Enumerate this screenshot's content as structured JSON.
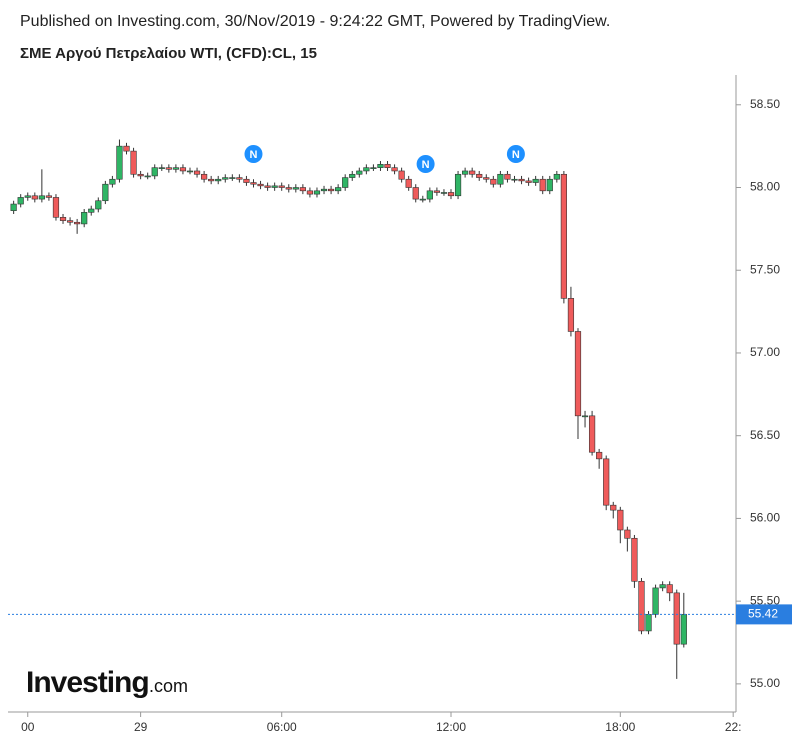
{
  "header": "Published on Investing.com, 30/Nov/2019 - 9:24:22 GMT, Powered by TradingView.",
  "chart_data": {
    "type": "candlestick",
    "title": "ΣΜΕ Αργού Πετρελαίου WTI, (CFD):CL, 15",
    "watermark": {
      "brand": "Investing",
      "suffix": ".com"
    },
    "up_color": "#2fb565",
    "down_color": "#ef5b5b",
    "x": [
      -3.5,
      -3.25,
      -3,
      -2.75,
      -2.5,
      -2.25,
      -2,
      -1.75,
      -1.5,
      -1.25,
      -1,
      -0.75,
      -0.5,
      -0.25,
      0,
      0.25,
      0.5,
      0.75,
      1,
      1.25,
      1.5,
      1.75,
      2,
      2.25,
      2.5,
      2.75,
      3,
      3.25,
      3.5,
      3.75,
      4,
      4.25,
      4.5,
      4.75,
      5,
      5.25,
      5.5,
      5.75,
      6,
      6.25,
      6.5,
      6.75,
      7,
      7.25,
      7.5,
      7.75,
      8,
      8.25,
      8.5,
      8.75,
      9,
      9.25,
      9.5,
      9.75,
      10,
      10.25,
      10.5,
      10.75,
      11,
      11.25,
      11.5,
      11.75,
      12,
      12.25,
      12.5,
      12.75,
      13,
      13.25,
      13.5,
      13.75,
      14,
      14.25,
      14.5,
      14.75,
      15,
      15.25,
      15.5,
      15.75,
      16,
      16.25,
      16.5,
      16.75,
      17,
      17.25,
      17.5,
      17.75,
      18,
      18.25,
      18.5,
      18.75,
      19,
      19.25,
      19.5,
      19.75,
      20,
      20.25
    ],
    "open": [
      57.86,
      57.9,
      57.94,
      57.95,
      57.93,
      57.95,
      57.94,
      57.82,
      57.8,
      57.79,
      57.78,
      57.85,
      57.87,
      57.92,
      58.02,
      58.05,
      58.25,
      58.22,
      58.08,
      58.07,
      58.07,
      58.12,
      58.12,
      58.11,
      58.12,
      58.1,
      58.1,
      58.08,
      58.05,
      58.04,
      58.05,
      58.06,
      58.06,
      58.05,
      58.03,
      58.02,
      58.01,
      58.0,
      58.01,
      58.0,
      57.99,
      58.0,
      57.98,
      57.96,
      57.98,
      57.99,
      57.98,
      58.0,
      58.06,
      58.08,
      58.1,
      58.12,
      58.12,
      58.14,
      58.12,
      58.1,
      58.05,
      58.0,
      57.93,
      57.93,
      57.98,
      57.97,
      57.97,
      57.95,
      58.08,
      58.1,
      58.08,
      58.06,
      58.05,
      58.02,
      58.08,
      58.05,
      58.05,
      58.04,
      58.03,
      58.05,
      57.98,
      58.05,
      58.08,
      57.33,
      57.13,
      56.62,
      56.62,
      56.4,
      56.36,
      56.08,
      56.05,
      55.93,
      55.88,
      55.62,
      55.32,
      55.42,
      55.58,
      55.6,
      55.55,
      55.24
    ],
    "high": [
      57.92,
      57.96,
      57.97,
      57.97,
      58.11,
      57.97,
      57.96,
      57.84,
      57.82,
      57.81,
      57.87,
      57.89,
      57.94,
      58.04,
      58.07,
      58.29,
      58.27,
      58.24,
      58.1,
      58.09,
      58.14,
      58.14,
      58.14,
      58.14,
      58.14,
      58.12,
      58.12,
      58.1,
      58.07,
      58.07,
      58.08,
      58.08,
      58.08,
      58.07,
      58.05,
      58.04,
      58.03,
      58.03,
      58.03,
      58.02,
      58.02,
      58.02,
      58.0,
      58.0,
      58.01,
      58.01,
      58.02,
      58.08,
      58.1,
      58.12,
      58.14,
      58.14,
      58.16,
      58.16,
      58.14,
      58.12,
      58.07,
      58.02,
      57.95,
      58.0,
      58.0,
      57.99,
      57.99,
      58.1,
      58.12,
      58.12,
      58.1,
      58.08,
      58.07,
      58.1,
      58.1,
      58.07,
      58.07,
      58.06,
      58.07,
      58.07,
      58.07,
      58.1,
      58.1,
      57.4,
      57.15,
      56.65,
      56.65,
      56.42,
      56.38,
      56.1,
      56.07,
      55.95,
      55.9,
      55.64,
      55.44,
      55.6,
      55.62,
      55.62,
      55.57,
      55.55
    ],
    "low": [
      57.84,
      57.88,
      57.92,
      57.91,
      57.91,
      57.92,
      57.8,
      57.78,
      57.77,
      57.72,
      57.76,
      57.83,
      57.85,
      57.9,
      58.0,
      58.03,
      58.2,
      58.06,
      58.05,
      58.05,
      58.05,
      58.1,
      58.09,
      58.09,
      58.08,
      58.08,
      58.06,
      58.03,
      58.02,
      58.02,
      58.03,
      58.04,
      58.03,
      58.01,
      58.0,
      57.99,
      57.98,
      57.98,
      57.98,
      57.97,
      57.97,
      57.96,
      57.94,
      57.94,
      57.96,
      57.96,
      57.96,
      57.98,
      58.04,
      58.06,
      58.08,
      58.1,
      58.1,
      58.1,
      58.08,
      58.03,
      57.98,
      57.91,
      57.91,
      57.91,
      57.95,
      57.95,
      57.93,
      57.93,
      58.06,
      58.06,
      58.04,
      58.03,
      58.0,
      58.0,
      58.03,
      58.03,
      58.02,
      58.01,
      58.01,
      57.96,
      57.96,
      58.03,
      57.3,
      57.1,
      56.48,
      56.55,
      56.38,
      56.3,
      56.05,
      56.0,
      55.85,
      55.8,
      55.58,
      55.3,
      55.3,
      55.4,
      55.56,
      55.5,
      55.03,
      55.22
    ],
    "close": [
      57.9,
      57.94,
      57.95,
      57.93,
      57.95,
      57.94,
      57.82,
      57.8,
      57.79,
      57.78,
      57.85,
      57.87,
      57.92,
      58.02,
      58.05,
      58.25,
      58.22,
      58.08,
      58.07,
      58.07,
      58.12,
      58.12,
      58.11,
      58.12,
      58.1,
      58.1,
      58.08,
      58.05,
      58.04,
      58.05,
      58.06,
      58.06,
      58.05,
      58.03,
      58.02,
      58.01,
      58.0,
      58.01,
      58.0,
      57.99,
      58.0,
      57.98,
      57.96,
      57.98,
      57.99,
      57.98,
      58.0,
      58.06,
      58.08,
      58.1,
      58.12,
      58.12,
      58.14,
      58.12,
      58.1,
      58.05,
      58.0,
      57.93,
      57.93,
      57.98,
      57.97,
      57.97,
      57.95,
      58.08,
      58.1,
      58.08,
      58.06,
      58.05,
      58.02,
      58.08,
      58.05,
      58.05,
      58.04,
      58.03,
      58.05,
      57.98,
      58.05,
      58.08,
      57.33,
      57.13,
      56.62,
      56.62,
      56.4,
      56.36,
      56.08,
      56.05,
      55.93,
      55.88,
      55.62,
      55.32,
      55.42,
      55.58,
      55.6,
      55.55,
      55.24,
      55.42
    ],
    "last_price": {
      "value": 55.42,
      "label": "55.42",
      "color": "#2a7ee0"
    },
    "news_markers": [
      {
        "x": 5,
        "label": "N"
      },
      {
        "x": 11.1,
        "label": "N"
      },
      {
        "x": 14.3,
        "label": "N"
      }
    ],
    "xlim": [
      -3.7,
      22.1
    ],
    "xticks": [
      {
        "value": -3,
        "label": "00"
      },
      {
        "value": 1,
        "label": "29"
      },
      {
        "value": 6,
        "label": "06:00"
      },
      {
        "value": 12,
        "label": "12:00"
      },
      {
        "value": 18,
        "label": "18:00"
      },
      {
        "value": 22,
        "label": "22:"
      }
    ],
    "ylim": [
      54.83,
      58.68
    ],
    "yticks": [
      {
        "value": 55,
        "label": "55.00"
      },
      {
        "value": 55.5,
        "label": "55.50"
      },
      {
        "value": 56,
        "label": "56.00"
      },
      {
        "value": 56.5,
        "label": "56.50"
      },
      {
        "value": 57,
        "label": "57.00"
      },
      {
        "value": 57.5,
        "label": "57.50"
      },
      {
        "value": 58,
        "label": "58.00"
      },
      {
        "value": 58.5,
        "label": "58.50"
      }
    ]
  }
}
